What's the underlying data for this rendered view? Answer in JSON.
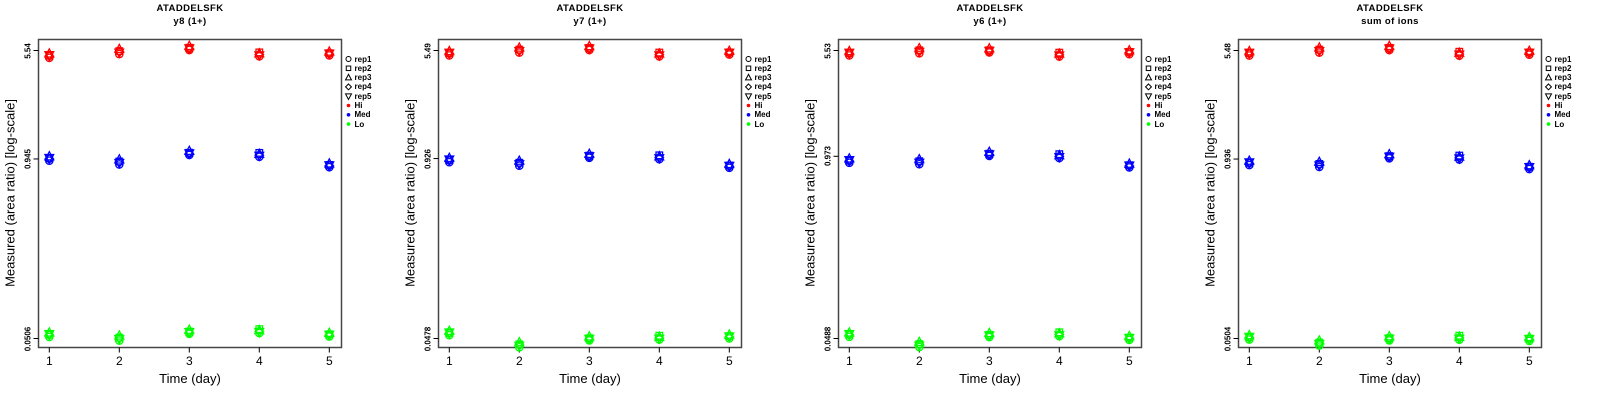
{
  "chart_data": {
    "type": "scatter",
    "xlabel": "Time (day)",
    "ylabel": "Measured (area ratio) [log-scale]",
    "x_ticks": [
      1,
      2,
      3,
      4,
      5
    ],
    "x_range": [
      0.84,
      5.16
    ],
    "log_y": true,
    "grid": false,
    "legend_position": "right-of-plot",
    "legend": [
      {
        "label": "rep1",
        "symbol": "circle",
        "color": "#000000"
      },
      {
        "label": "rep2",
        "symbol": "square",
        "color": "#000000"
      },
      {
        "label": "rep3",
        "symbol": "triangle-up",
        "color": "#000000"
      },
      {
        "label": "rep4",
        "symbol": "diamond",
        "color": "#000000"
      },
      {
        "label": "rep5",
        "symbol": "triangle-down",
        "color": "#000000"
      },
      {
        "label": "Hi",
        "symbol": "dot",
        "color": "#ff0000"
      },
      {
        "label": "Med",
        "symbol": "dot",
        "color": "#0000ff"
      },
      {
        "label": "Lo",
        "symbol": "dot",
        "color": "#00ff00"
      }
    ],
    "level_colors": {
      "Hi": "#ff0000",
      "Med": "#0000ff",
      "Lo": "#00ff00"
    },
    "rep_jitter_log10": [
      [
        -0.012,
        0.004,
        0.018,
        0.0,
        0.008
      ],
      [
        -0.015,
        0.006,
        0.02,
        0.002,
        -0.004
      ],
      [
        -0.002,
        0.014,
        0.026,
        0.006,
        0.01
      ],
      [
        -0.008,
        0.02,
        0.012,
        0.004,
        0.0
      ],
      [
        -0.01,
        0.006,
        0.016,
        0.0,
        0.004
      ]
    ],
    "plots": [
      {
        "title": "ATADDELSFK",
        "subtitle": "y8 (1+)",
        "y_tick_labels": [
          "5.54",
          "0.945",
          "0.0506"
        ],
        "y_tick_values": [
          5.54,
          0.945,
          0.0506
        ],
        "series": [
          {
            "name": "Hi",
            "day_means": [
              5.05,
              5.41,
              5.61,
              5.13,
              5.23
            ]
          },
          {
            "name": "Med",
            "day_means": [
              0.945,
              0.894,
              1.013,
              0.997,
              0.845
            ]
          },
          {
            "name": "Lo",
            "day_means": [
              0.0534,
              0.0506,
              0.0549,
              0.0563,
              0.0534
            ]
          }
        ]
      },
      {
        "title": "ATADDELSFK",
        "subtitle": "y7 (1+)",
        "y_tick_labels": [
          "5.49",
          "0.926",
          "0.0478"
        ],
        "y_tick_values": [
          5.49,
          0.926,
          0.0478
        ],
        "series": [
          {
            "name": "Hi",
            "day_means": [
              5.2,
              5.49,
              5.55,
              5.07,
              5.25
            ]
          },
          {
            "name": "Med",
            "day_means": [
              0.896,
              0.852,
              0.941,
              0.933,
              0.814
            ]
          },
          {
            "name": "Lo",
            "day_means": [
              0.0519,
              0.0428,
              0.0465,
              0.0478,
              0.049
            ]
          }
        ]
      },
      {
        "title": "ATADDELSFK",
        "subtitle": "y6 (1+)",
        "y_tick_labels": [
          "5.53",
          "0.973",
          "0.0488"
        ],
        "y_tick_values": [
          5.53,
          0.973,
          0.0488
        ],
        "series": [
          {
            "name": "Hi",
            "day_means": [
              5.24,
              5.47,
              5.38,
              5.1,
              5.33
            ]
          },
          {
            "name": "Med",
            "day_means": [
              0.898,
              0.884,
              0.983,
              0.962,
              0.829
            ]
          },
          {
            "name": "Lo",
            "day_means": [
              0.0516,
              0.0439,
              0.0502,
              0.0516,
              0.0488
            ]
          }
        ]
      },
      {
        "title": "ATADDELSFK",
        "subtitle": "sum of ions",
        "y_tick_labels": [
          "5.48",
          "0.936",
          "0.0504"
        ],
        "y_tick_values": [
          5.48,
          0.936,
          0.0504
        ],
        "series": [
          {
            "name": "Hi",
            "day_means": [
              5.19,
              5.48,
              5.54,
              5.13,
              5.24
            ]
          },
          {
            "name": "Med",
            "day_means": [
              0.872,
              0.852,
              0.951,
              0.946,
              0.814
            ]
          },
          {
            "name": "Lo",
            "day_means": [
              0.0509,
              0.0465,
              0.0491,
              0.0504,
              0.0496
            ]
          }
        ]
      }
    ]
  }
}
